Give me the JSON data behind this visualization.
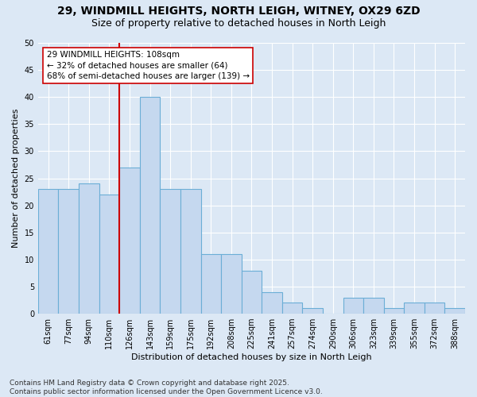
{
  "title_line1": "29, WINDMILL HEIGHTS, NORTH LEIGH, WITNEY, OX29 6ZD",
  "title_line2": "Size of property relative to detached houses in North Leigh",
  "xlabel": "Distribution of detached houses by size in North Leigh",
  "ylabel": "Number of detached properties",
  "categories": [
    "61sqm",
    "77sqm",
    "94sqm",
    "110sqm",
    "126sqm",
    "143sqm",
    "159sqm",
    "175sqm",
    "192sqm",
    "208sqm",
    "225sqm",
    "241sqm",
    "257sqm",
    "274sqm",
    "290sqm",
    "306sqm",
    "323sqm",
    "339sqm",
    "355sqm",
    "372sqm",
    "388sqm"
  ],
  "values": [
    23,
    23,
    24,
    22,
    27,
    40,
    23,
    23,
    11,
    11,
    8,
    4,
    2,
    1,
    0,
    3,
    3,
    1,
    2,
    2,
    1
  ],
  "bar_color": "#c5d8ef",
  "bar_edge_color": "#6baed6",
  "background_color": "#dce8f5",
  "grid_color": "#ffffff",
  "vline_x_index": 3.5,
  "vline_color": "#cc0000",
  "annotation_text": "29 WINDMILL HEIGHTS: 108sqm\n← 32% of detached houses are smaller (64)\n68% of semi-detached houses are larger (139) →",
  "annotation_box_facecolor": "#ffffff",
  "annotation_box_edgecolor": "#cc0000",
  "ylim": [
    0,
    50
  ],
  "yticks": [
    0,
    5,
    10,
    15,
    20,
    25,
    30,
    35,
    40,
    45,
    50
  ],
  "footnote": "Contains HM Land Registry data © Crown copyright and database right 2025.\nContains public sector information licensed under the Open Government Licence v3.0.",
  "title_fontsize": 10,
  "subtitle_fontsize": 9,
  "axis_label_fontsize": 8,
  "tick_fontsize": 7,
  "annotation_fontsize": 7.5,
  "footnote_fontsize": 6.5
}
